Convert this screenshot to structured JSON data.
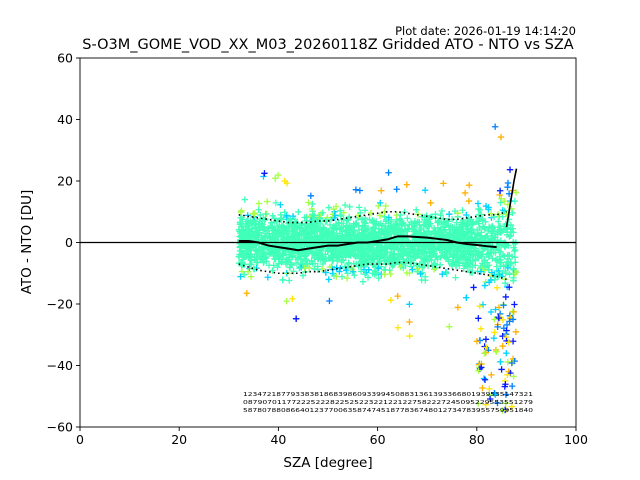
{
  "plot_date": "Plot date: 2026-01-19 14:14:20",
  "chart_data": {
    "type": "scatter",
    "title": "S-O3M_GOME_VOD_XX_M03_20260118Z Gridded ATO - NTO vs SZA",
    "xlabel": "SZA [degree]",
    "ylabel": "ATO - NTO [DU]",
    "xlim": [
      0,
      100
    ],
    "ylim": [
      -60,
      60
    ],
    "x_ticks": [
      0,
      20,
      40,
      60,
      80,
      100
    ],
    "y_ticks": [
      -60,
      -40,
      -20,
      0,
      20,
      40,
      60
    ],
    "marker": "+",
    "marker_colors": [
      "#0a1cff",
      "#0080ff",
      "#00d4ff",
      "#40ffb8",
      "#a8ff48",
      "#ffe600",
      "#ffb000"
    ],
    "scatter_sza_range": [
      32,
      88
    ],
    "reference_line_y": 0,
    "mean_line": {
      "x": [
        32,
        34,
        36,
        38,
        40,
        42,
        44,
        46,
        48,
        50,
        52,
        54,
        56,
        58,
        60,
        62,
        64,
        66,
        68,
        70,
        72,
        74,
        76,
        78,
        80,
        82,
        84
      ],
      "y": [
        0.5,
        0.5,
        0,
        -1,
        -1.5,
        -2,
        -2.5,
        -2,
        -1.5,
        -1,
        -1,
        -0.5,
        0,
        0,
        0.5,
        1,
        2,
        2,
        1.8,
        1.6,
        1.2,
        0.8,
        0,
        -0.5,
        -0.8,
        -1.2,
        -1.5
      ]
    },
    "upper_sigma_line": {
      "x": [
        32,
        34,
        36,
        38,
        40,
        42,
        44,
        46,
        48,
        50,
        52,
        54,
        56,
        58,
        60,
        62,
        64,
        66,
        68,
        70,
        72,
        74,
        76,
        78,
        80,
        82,
        84,
        86
      ],
      "y": [
        9,
        8.5,
        8,
        7.5,
        7,
        6.5,
        6.5,
        6.5,
        7,
        7,
        7.5,
        8,
        8.5,
        9,
        9.5,
        10,
        10,
        9.5,
        9,
        8.5,
        8,
        7.5,
        7.5,
        8,
        8.5,
        9,
        9,
        10
      ]
    },
    "lower_sigma_line": {
      "x": [
        32,
        34,
        36,
        38,
        40,
        42,
        44,
        46,
        48,
        50,
        52,
        54,
        56,
        58,
        60,
        62,
        64,
        66,
        68,
        70,
        72,
        74,
        76,
        78,
        80,
        82,
        84,
        86
      ],
      "y": [
        -7,
        -8,
        -9,
        -9.5,
        -10,
        -10,
        -10,
        -9.5,
        -9.5,
        -9,
        -8.5,
        -8,
        -7.5,
        -7,
        -7,
        -7,
        -6.5,
        -6.5,
        -7,
        -7.5,
        -8,
        -8.5,
        -9,
        -9.5,
        -10,
        -10.5,
        -11,
        -12
      ]
    },
    "right_edge_line": {
      "x": [
        86,
        86.5,
        87,
        87.5,
        88
      ],
      "y": [
        5,
        10,
        15,
        20,
        24
      ]
    },
    "count_label_rows": [
      "1234721877933838186839860933994508831361393366801939535147321",
      "087907011772225222822525223221221227582227245095229553551279",
      "5878078808664012377006358747451877836748012734783955759951840"
    ]
  }
}
